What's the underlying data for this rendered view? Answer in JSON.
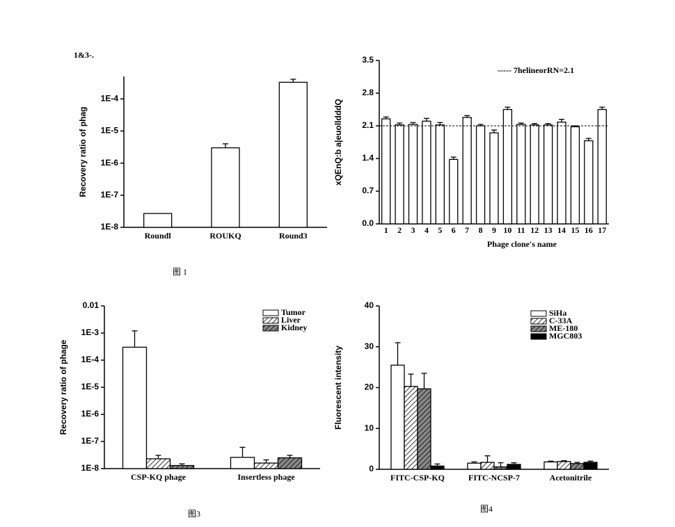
{
  "chart_data": [
    {
      "type": "bar",
      "title": "1&3-.",
      "log": true,
      "categories": [
        "Roundl",
        "ROUKQ",
        "Round3"
      ],
      "values": [
        2.7e-08,
        3e-06,
        0.00033
      ],
      "errors": [
        0,
        1e-06,
        8e-05
      ],
      "color": "#ffffff",
      "ylabel": "Recovery ratio of phag",
      "ylim": [
        1e-08,
        0.0005
      ],
      "yticks": [
        {
          "value": 1e-08,
          "label": "1E-8"
        },
        {
          "value": 1e-07,
          "label": "1E-7"
        },
        {
          "value": 1e-06,
          "label": "1E-6"
        },
        {
          "value": 1e-05,
          "label": "1E-5"
        },
        {
          "value": 0.0001,
          "label": "1E-4"
        }
      ]
    },
    {
      "type": "bar",
      "log": false,
      "categories": [
        "1",
        "2",
        "3",
        "4",
        "5",
        "6",
        "7",
        "8",
        "9",
        "10",
        "11",
        "12",
        "13",
        "14",
        "15",
        "16",
        "17"
      ],
      "values": [
        2.25,
        2.12,
        2.13,
        2.2,
        2.12,
        1.38,
        2.28,
        2.1,
        1.95,
        2.45,
        2.13,
        2.12,
        2.12,
        2.18,
        2.08,
        1.78,
        2.45
      ],
      "errors": [
        0.04,
        0.04,
        0.04,
        0.06,
        0.05,
        0.05,
        0.04,
        0.03,
        0.06,
        0.05,
        0.03,
        0.03,
        0.03,
        0.06,
        0.02,
        0.05,
        0.05
      ],
      "color": "#ffffff",
      "xlabel": "Phage clone's name",
      "ylabel": "xQEnQ:b a|euolldddQ",
      "threshold": 2.1,
      "threshold_label": "----- 7helineorRN=2.1",
      "ylim": [
        0,
        3.5
      ],
      "yticks": [
        {
          "value": 0,
          "label": "0.0"
        },
        0.7,
        1.4,
        2.1,
        2.8,
        3.5
      ]
    },
    {
      "type": "bar",
      "log": true,
      "categories": [
        "CSP-KQ phage",
        "Insertless phage"
      ],
      "ylabel": "Recovery ratio of phage",
      "series": [
        {
          "name": "Tumor",
          "color": "#ffffff",
          "hatch": false,
          "values": [
            0.0003,
            2.6e-08
          ],
          "errors": [
            0.0009,
            3.5e-08
          ]
        },
        {
          "name": "Liver",
          "color": "#ffffff",
          "hatch": true,
          "values": [
            2.3e-08,
            1.6e-08
          ],
          "errors": [
            8e-09,
            5e-09
          ]
        },
        {
          "name": "Kidney",
          "color": "#888888",
          "hatch": true,
          "values": [
            1.3e-08,
            2.5e-08
          ],
          "errors": [
            2e-09,
            6e-09
          ]
        }
      ],
      "ylim": [
        1e-08,
        0.01
      ],
      "yticks": [
        {
          "value": 1e-08,
          "label": "1E-8"
        },
        {
          "value": 1e-07,
          "label": "1E-7"
        },
        {
          "value": 1e-06,
          "label": "1E-6"
        },
        {
          "value": 1e-05,
          "label": "1E-5"
        },
        {
          "value": 0.0001,
          "label": "1E-4"
        },
        {
          "value": 0.001,
          "label": "1E-3"
        },
        0.01
      ]
    },
    {
      "type": "bar",
      "log": false,
      "categories": [
        "FITC-CSP-KQ",
        "FITC-NCSP-7",
        "Acetonitrile"
      ],
      "ylabel": "Fluorescent intensity",
      "series": [
        {
          "name": "SiHa",
          "color": "#ffffff",
          "hatch": false,
          "values": [
            25.5,
            1.5,
            1.8
          ],
          "errors": [
            5.5,
            0.3,
            0.2
          ]
        },
        {
          "name": "C-33A",
          "color": "#ffffff",
          "hatch": true,
          "values": [
            20.3,
            1.7,
            1.9
          ],
          "errors": [
            3,
            1.6,
            0.2
          ]
        },
        {
          "name": "ME-180",
          "color": "#888888",
          "hatch": true,
          "values": [
            19.7,
            0.6,
            1.4
          ],
          "errors": [
            3.8,
            1,
            0.3
          ]
        },
        {
          "name": "MGC803",
          "color": "#000000",
          "hatch": false,
          "values": [
            0.8,
            1.2,
            1.7
          ],
          "errors": [
            0.5,
            0.4,
            0.3
          ]
        }
      ],
      "ylim": [
        0,
        40
      ],
      "yticks": [
        0,
        10,
        20,
        30,
        40
      ]
    }
  ],
  "captions": [
    "图 1",
    "图3",
    "图4"
  ]
}
